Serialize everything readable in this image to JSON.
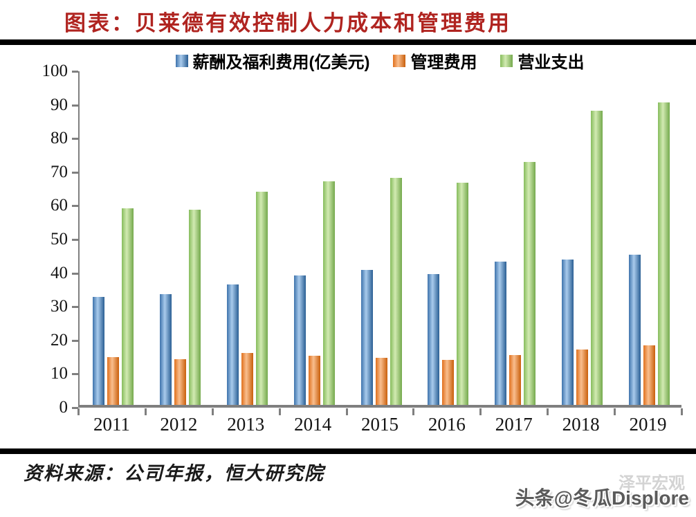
{
  "title": "图表：贝莱德有效控制人力成本和管理费用",
  "source": {
    "text": "资料来源：公司年报，恒大研究院"
  },
  "watermark": {
    "primary": "头条@冬瓜Displore",
    "secondary": "泽平宏观"
  },
  "colors": {
    "title": "#b02420",
    "axis": "#7f7f7f",
    "rule": "#000000",
    "tick_label": "#141414"
  },
  "chart_data": {
    "type": "bar",
    "title": "图表：贝莱德有效控制人力成本和管理费用",
    "xlabel": "",
    "ylabel": "",
    "categories": [
      "2011",
      "2012",
      "2013",
      "2014",
      "2015",
      "2016",
      "2017",
      "2018",
      "2019"
    ],
    "series": [
      {
        "name": "薪酬及福利费用(亿美元)",
        "values": [
          32.2,
          33.0,
          35.9,
          38.5,
          40.1,
          38.9,
          42.6,
          43.2,
          44.6
        ],
        "color_edge": "#3e73ac",
        "color_center": "#a9cbec",
        "color_edge2": "#2a5e94"
      },
      {
        "name": "管理费用",
        "values": [
          14.2,
          13.6,
          15.5,
          14.7,
          14.0,
          13.3,
          14.9,
          16.4,
          17.7
        ],
        "color_edge": "#e0701c",
        "color_center": "#f9be8e",
        "color_edge2": "#c95f0b"
      },
      {
        "name": "营业支出",
        "values": [
          58.4,
          58.1,
          63.4,
          66.4,
          67.5,
          66.0,
          72.2,
          87.4,
          90.0
        ],
        "color_edge": "#86bc5c",
        "color_center": "#d2eab2",
        "color_edge2": "#74a94c"
      }
    ],
    "ylim": [
      0,
      100
    ],
    "yticks": [
      0,
      10,
      20,
      30,
      40,
      50,
      60,
      70,
      80,
      90,
      100
    ],
    "grid": false,
    "legend_position": "top"
  }
}
